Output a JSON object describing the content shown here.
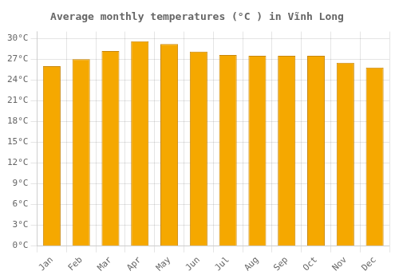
{
  "chart_data": {
    "type": "bar",
    "title": "Average monthly temperatures (°C ) in Vĩnh Long",
    "categories": [
      "Jan",
      "Feb",
      "Mar",
      "Apr",
      "May",
      "Jun",
      "Jul",
      "Aug",
      "Sep",
      "Oct",
      "Nov",
      "Dec"
    ],
    "values": [
      26.0,
      27.0,
      28.2,
      29.6,
      29.2,
      28.1,
      27.6,
      27.5,
      27.5,
      27.5,
      26.5,
      25.8
    ],
    "color": "#F5A800",
    "ylim": [
      0,
      31
    ],
    "yticks": [
      {
        "value": 0,
        "label": "0°C"
      },
      {
        "value": 3,
        "label": "3°C"
      },
      {
        "value": 6,
        "label": "6°C"
      },
      {
        "value": 9,
        "label": "9°C"
      },
      {
        "value": 12,
        "label": "12°C"
      },
      {
        "value": 15,
        "label": "15°C"
      },
      {
        "value": 18,
        "label": "18°C"
      },
      {
        "value": 21,
        "label": "21°C"
      },
      {
        "value": 24,
        "label": "24°C"
      },
      {
        "value": 27,
        "label": "27°C"
      },
      {
        "value": 30,
        "label": "30°C"
      }
    ],
    "grid": true
  }
}
